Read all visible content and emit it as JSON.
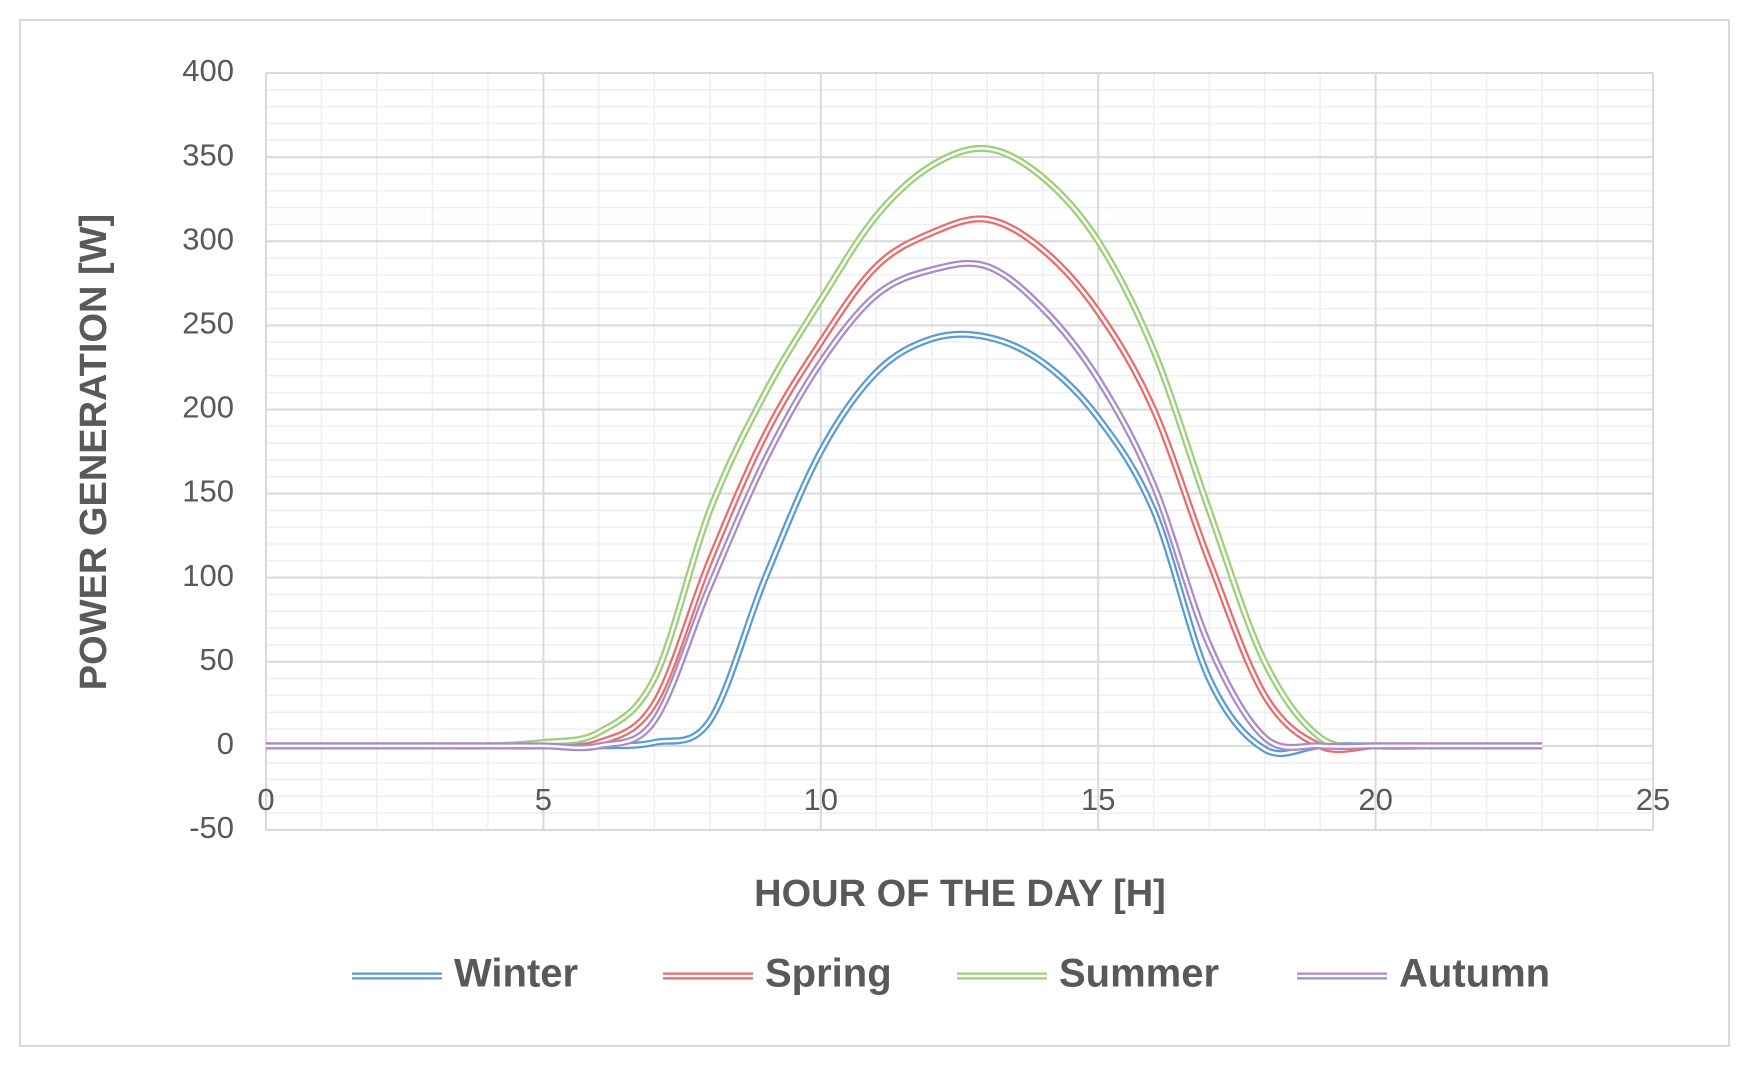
{
  "chart_data": {
    "type": "line",
    "x_label": "HOUR OF THE DAY [H]",
    "y_label": "POWER GENERATION [W]",
    "x": [
      0,
      1,
      2,
      3,
      4,
      5,
      6,
      7,
      8,
      9,
      10,
      11,
      12,
      13,
      14,
      15,
      16,
      17,
      18,
      19,
      20,
      21,
      22,
      23
    ],
    "series": [
      {
        "name": "Winter",
        "color": "#5b9bd5",
        "values": [
          0,
          0,
          0,
          0,
          0,
          0,
          0,
          2,
          15,
          100,
          175,
          222,
          242,
          243,
          228,
          195,
          140,
          40,
          -2,
          0,
          0,
          0,
          0,
          0
        ]
      },
      {
        "name": "Spring",
        "color": "#ed6a6a",
        "values": [
          0,
          0,
          0,
          0,
          0,
          0,
          2,
          25,
          110,
          185,
          240,
          285,
          305,
          313,
          295,
          258,
          200,
          110,
          30,
          0,
          0,
          0,
          0,
          0
        ]
      },
      {
        "name": "Summer",
        "color": "#9bcf7a",
        "values": [
          0,
          0,
          0,
          0,
          0,
          2,
          8,
          40,
          140,
          210,
          265,
          315,
          345,
          355,
          338,
          300,
          235,
          140,
          50,
          5,
          0,
          0,
          0,
          0
        ]
      },
      {
        "name": "Autumn",
        "color": "#a98bc9",
        "values": [
          0,
          0,
          0,
          0,
          0,
          0,
          0,
          15,
          95,
          170,
          228,
          268,
          283,
          285,
          260,
          218,
          155,
          60,
          5,
          0,
          0,
          0,
          0,
          0
        ]
      }
    ],
    "xlim": [
      0,
      25
    ],
    "xticks": [
      0,
      5,
      10,
      15,
      20,
      25
    ],
    "ylim": [
      -50,
      400
    ],
    "yticks": [
      -50,
      0,
      50,
      100,
      150,
      200,
      250,
      300,
      350,
      400
    ],
    "grid": true,
    "minor_grid": true,
    "legend": "bottom"
  }
}
